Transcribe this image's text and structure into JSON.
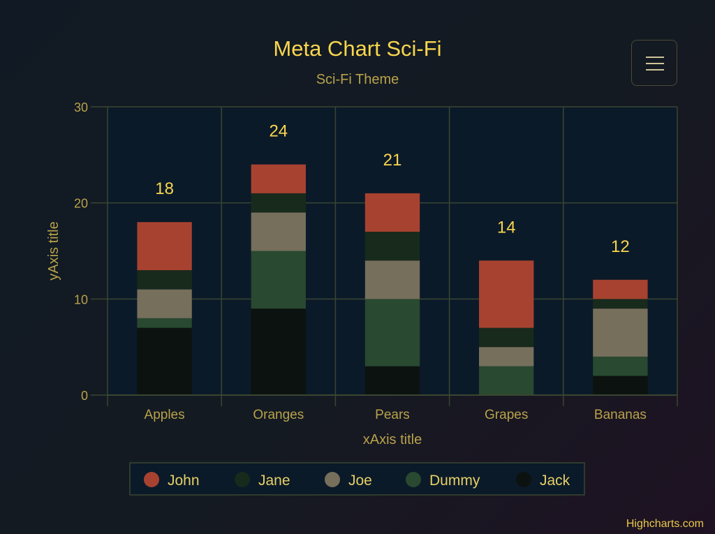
{
  "chart_data": {
    "type": "bar",
    "stacked": true,
    "title": "Meta Chart Sci-Fi",
    "subtitle": "Sci-Fi Theme",
    "xlabel": "xAxis title",
    "ylabel": "yAxis title",
    "categories": [
      "Apples",
      "Oranges",
      "Pears",
      "Grapes",
      "Bananas"
    ],
    "ylim": [
      0,
      30
    ],
    "yticks": [
      0,
      10,
      20,
      30
    ],
    "grid": true,
    "legend_position": "bottom",
    "series": [
      {
        "name": "John",
        "color": "#a84230",
        "values": [
          5,
          3,
          4,
          7,
          2
        ]
      },
      {
        "name": "Jane",
        "color": "#182a1c",
        "values": [
          2,
          2,
          3,
          2,
          1
        ]
      },
      {
        "name": "Joe",
        "color": "#766f5c",
        "values": [
          3,
          4,
          4,
          2,
          5
        ]
      },
      {
        "name": "Dummy",
        "color": "#294930",
        "values": [
          1,
          6,
          7,
          3,
          2
        ]
      },
      {
        "name": "Jack",
        "color": "#0c120f",
        "values": [
          7,
          9,
          3,
          0,
          2
        ]
      }
    ],
    "totals": [
      18,
      24,
      21,
      14,
      12
    ]
  },
  "credits": "Highcharts.com",
  "menu_icon": "hamburger-menu-icon"
}
